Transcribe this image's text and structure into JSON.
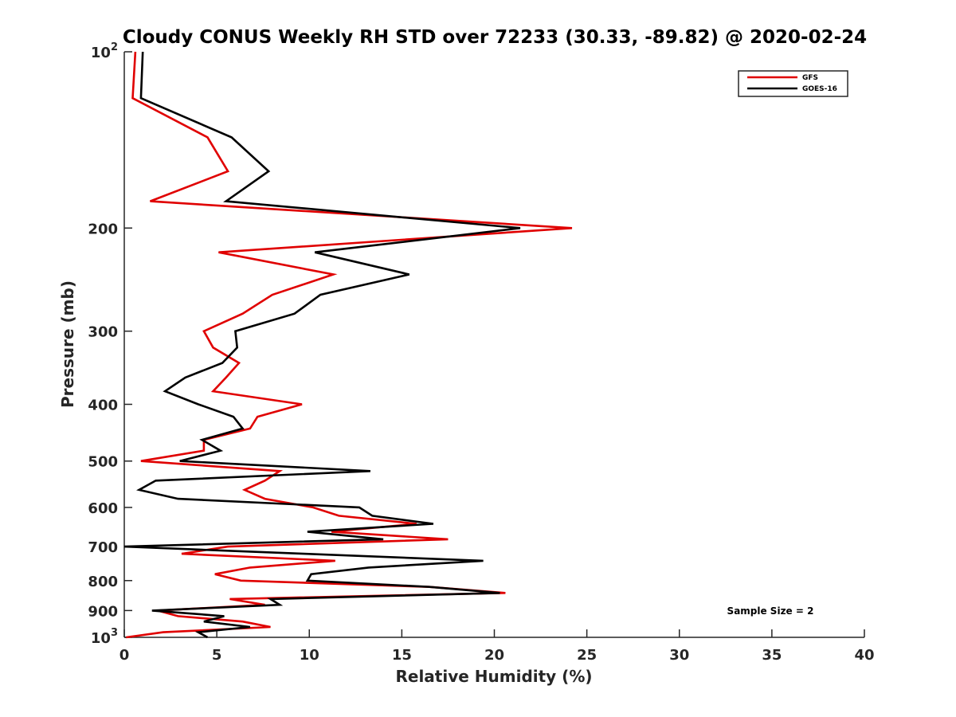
{
  "chart_data": {
    "type": "line",
    "title": "Cloudy CONUS Weekly RH STD over 72233 (30.33, -89.82) @ 2020-02-24",
    "xlabel": "Relative Humidity (%)",
    "ylabel": "Pressure (mb)",
    "xlim": [
      0,
      40
    ],
    "ylim": [
      100,
      1000
    ],
    "yscale": "log",
    "yreversed": true,
    "grid": false,
    "xticks": [
      0,
      5,
      10,
      15,
      20,
      25,
      30,
      35,
      40
    ],
    "xtick_labels": [
      "0",
      "5",
      "10",
      "15",
      "20",
      "25",
      "30",
      "35",
      "40"
    ],
    "yticks": [
      100,
      200,
      300,
      400,
      500,
      600,
      700,
      800,
      900,
      1000
    ],
    "ytick_labels": [
      {
        "base": "10",
        "exp": "2"
      },
      {
        "base": "200"
      },
      {
        "base": "300"
      },
      {
        "base": "400"
      },
      {
        "base": "500"
      },
      {
        "base": "600"
      },
      {
        "base": "700"
      },
      {
        "base": "800"
      },
      {
        "base": "900"
      },
      {
        "base": "10",
        "exp": "3"
      }
    ],
    "legend": {
      "position": "top-right",
      "entries": [
        "GFS",
        "GOES-16"
      ]
    },
    "annotation": "Sample Size = 2",
    "pressure": [
      100,
      120,
      140,
      160,
      180,
      200,
      220,
      240,
      260,
      280,
      300,
      320,
      340,
      360,
      380,
      400,
      420,
      440,
      460,
      480,
      500,
      520,
      540,
      560,
      580,
      600,
      620,
      640,
      660,
      680,
      700,
      720,
      740,
      760,
      780,
      800,
      820,
      840,
      860,
      880,
      900,
      920,
      940,
      960,
      980,
      1000
    ],
    "series": [
      {
        "name": "GFS",
        "color": "#e00000",
        "values": [
          0.6,
          0.45,
          4.5,
          5.6,
          1.4,
          24.2,
          5.1,
          11.3,
          8.0,
          6.4,
          4.3,
          4.8,
          6.2,
          5.5,
          4.8,
          9.6,
          7.2,
          6.8,
          4.3,
          4.3,
          0.9,
          8.4,
          7.6,
          6.5,
          7.6,
          10.2,
          11.6,
          15.8,
          11.2,
          17.5,
          5.6,
          3.1,
          11.4,
          6.8,
          4.9,
          6.3,
          16.5,
          20.6,
          5.7,
          7.6,
          1.8,
          2.9,
          6.4,
          7.9,
          2.1,
          0.1
        ]
      },
      {
        "name": "GOES-16",
        "color": "#000000",
        "values": [
          1.0,
          0.9,
          5.8,
          7.8,
          5.5,
          21.4,
          10.3,
          15.4,
          10.6,
          9.2,
          6.0,
          6.1,
          5.3,
          3.3,
          2.2,
          4.0,
          5.9,
          6.4,
          4.2,
          5.2,
          3.0,
          13.3,
          1.7,
          0.8,
          2.9,
          12.7,
          13.4,
          16.7,
          9.9,
          14.0,
          0.0,
          9.7,
          19.4,
          13.2,
          10.1,
          9.9,
          16.5,
          20.3,
          7.9,
          8.4,
          1.5,
          5.4,
          4.3,
          6.8,
          4.0,
          4.5
        ]
      }
    ]
  }
}
